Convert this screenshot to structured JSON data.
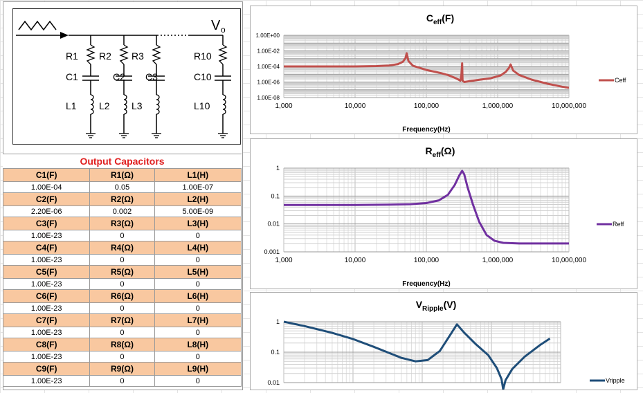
{
  "schematic": {
    "vout": "V",
    "vout_sub": "o",
    "branches": [
      {
        "r": "R1",
        "c": "C1",
        "l": "L1"
      },
      {
        "r": "R2",
        "c": "C2",
        "l": "L2"
      },
      {
        "r": "R3",
        "c": "C3",
        "l": "L3"
      },
      {
        "r": "R10",
        "c": "C10",
        "l": "L10"
      }
    ]
  },
  "table": {
    "title": "Output Capacitors",
    "rows": [
      {
        "h": [
          "C1(F)",
          "R1(Ω)",
          "L1(H)"
        ],
        "v": [
          "1.00E-04",
          "0.05",
          "1.00E-07"
        ]
      },
      {
        "h": [
          "C2(F)",
          "R2(Ω)",
          "L2(H)"
        ],
        "v": [
          "2.20E-06",
          "0.002",
          "5.00E-09"
        ]
      },
      {
        "h": [
          "C3(F)",
          "R3(Ω)",
          "L3(H)"
        ],
        "v": [
          "1.00E-23",
          "0",
          "0"
        ]
      },
      {
        "h": [
          "C4(F)",
          "R4(Ω)",
          "L4(H)"
        ],
        "v": [
          "1.00E-23",
          "0",
          "0"
        ]
      },
      {
        "h": [
          "C5(F)",
          "R5(Ω)",
          "L5(H)"
        ],
        "v": [
          "1.00E-23",
          "0",
          "0"
        ]
      },
      {
        "h": [
          "C6(F)",
          "R6(Ω)",
          "L6(H)"
        ],
        "v": [
          "1.00E-23",
          "0",
          "0"
        ]
      },
      {
        "h": [
          "C7(F)",
          "R7(Ω)",
          "L7(H)"
        ],
        "v": [
          "1.00E-23",
          "0",
          "0"
        ]
      },
      {
        "h": [
          "C8(F)",
          "R8(Ω)",
          "L8(H)"
        ],
        "v": [
          "1.00E-23",
          "0",
          "0"
        ]
      },
      {
        "h": [
          "C9(F)",
          "R9(Ω)",
          "L9(H)"
        ],
        "v": [
          "1.00E-23",
          "0",
          "0"
        ]
      }
    ]
  },
  "chart_data": [
    {
      "type": "line",
      "title_main": "C",
      "title_sub": "eff",
      "title_unit": "(F)",
      "xlabel": "Frequency(Hz)",
      "xscale": "log",
      "yscale": "log",
      "xlim": [
        1000,
        10000000
      ],
      "ylim": [
        1e-08,
        1
      ],
      "xticks": [
        "1,000",
        "10,000",
        "100,000",
        "1,000,000",
        "10,000,000"
      ],
      "yticks": [
        "1.00E-08",
        "1.00E-06",
        "1.00E-04",
        "1.00E-02",
        "1.00E+00"
      ],
      "legend": "right",
      "color": "#c0504d",
      "series": [
        {
          "name": "Ceff",
          "x": [
            1000,
            5000,
            10000,
            20000,
            30000,
            40000,
            47000,
            51000,
            53000,
            56000,
            65000,
            100000,
            150000,
            200000,
            260000,
            300000,
            310000,
            318000,
            322000,
            340000,
            500000,
            800000,
            1100000,
            1300000,
            1450000,
            1520000,
            1650000,
            2000000,
            3000000,
            5000000,
            8000000,
            10000000
          ],
          "y": [
            0.0001,
            0.0001,
            0.0001,
            0.00011,
            0.00013,
            0.0002,
            0.0004,
            0.0012,
            0.005,
            0.0005,
            0.00012,
            3.5e-05,
            1.6e-05,
            8e-06,
            3e-06,
            1.5e-06,
            8e-06,
            0.00025,
            1.5e-06,
            1e-06,
            1.7e-06,
            3e-06,
            7e-06,
            2e-05,
            7e-05,
            0.00018,
            3e-05,
            8e-06,
            2e-06,
            6e-07,
            2.5e-07,
            1.8e-07
          ]
        }
      ]
    },
    {
      "type": "line",
      "title_main": "R",
      "title_sub": "eff",
      "title_unit": "(Ω)",
      "xlabel": "Frequency(Hz)",
      "xscale": "log",
      "yscale": "log",
      "xlim": [
        1000,
        10000000
      ],
      "ylim": [
        0.001,
        1
      ],
      "xticks": [
        "1,000",
        "10,000",
        "100,000",
        "1,000,000",
        "10,000,000"
      ],
      "yticks": [
        "0.001",
        "0.01",
        "0.1",
        "1"
      ],
      "legend": "right",
      "color": "#7030a0",
      "series": [
        {
          "name": "Reff",
          "x": [
            1000,
            10000,
            30000,
            60000,
            100000,
            150000,
            200000,
            250000,
            290000,
            318000,
            340000,
            380000,
            450000,
            550000,
            700000,
            900000,
            1200000,
            2000000,
            5000000,
            10000000
          ],
          "y": [
            0.048,
            0.048,
            0.049,
            0.051,
            0.056,
            0.07,
            0.11,
            0.25,
            0.55,
            0.8,
            0.6,
            0.2,
            0.05,
            0.012,
            0.004,
            0.0025,
            0.0021,
            0.002,
            0.002,
            0.002
          ]
        }
      ]
    },
    {
      "type": "line",
      "title_main": "V",
      "title_sub": "Ripple",
      "title_unit": "(V)",
      "xscale": "log",
      "yscale": "log",
      "xlim": [
        1000,
        10000000
      ],
      "ylim": [
        0.01,
        1
      ],
      "yticks": [
        "0.01",
        "0.1",
        "1"
      ],
      "legend": "right",
      "color": "#1f4e79",
      "series": [
        {
          "name": "Vripple",
          "x": [
            1000,
            2000,
            5000,
            10000,
            20000,
            35000,
            50000,
            80000,
            120000,
            180000,
            250000,
            318000,
            400000,
            600000,
            900000,
            1200000,
            1400000,
            1480000,
            1600000,
            2000000,
            3000000,
            5000000,
            7000000
          ],
          "y": [
            1.0,
            0.72,
            0.43,
            0.27,
            0.15,
            0.09,
            0.065,
            0.05,
            0.055,
            0.11,
            0.35,
            0.82,
            0.45,
            0.18,
            0.08,
            0.03,
            0.013,
            0.006,
            0.012,
            0.028,
            0.07,
            0.17,
            0.28
          ]
        }
      ]
    }
  ]
}
